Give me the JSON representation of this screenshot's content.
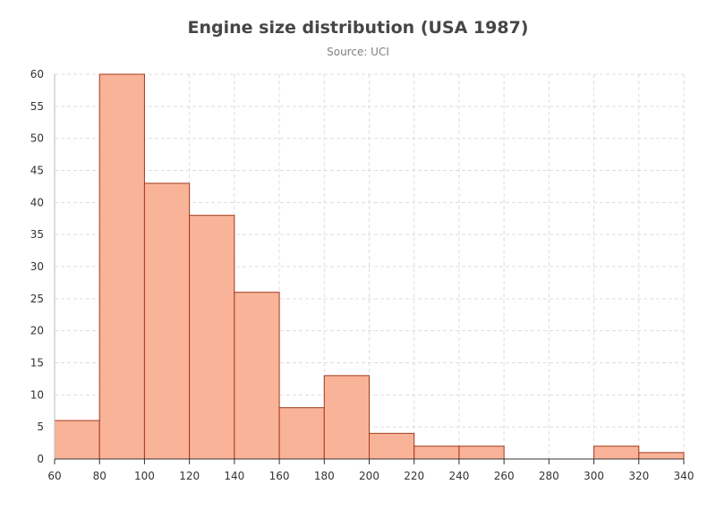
{
  "chart_data": {
    "type": "bar",
    "title": "Engine size distribution (USA 1987)",
    "subtitle": "Source: UCI",
    "xlabel": "",
    "ylabel": "",
    "bins": [
      {
        "from": 60,
        "to": 80,
        "count": 6
      },
      {
        "from": 80,
        "to": 100,
        "count": 60
      },
      {
        "from": 100,
        "to": 120,
        "count": 43
      },
      {
        "from": 120,
        "to": 140,
        "count": 38
      },
      {
        "from": 140,
        "to": 160,
        "count": 26
      },
      {
        "from": 160,
        "to": 180,
        "count": 8
      },
      {
        "from": 180,
        "to": 200,
        "count": 13
      },
      {
        "from": 200,
        "to": 220,
        "count": 4
      },
      {
        "from": 220,
        "to": 240,
        "count": 2
      },
      {
        "from": 240,
        "to": 260,
        "count": 2
      },
      {
        "from": 260,
        "to": 280,
        "count": 0
      },
      {
        "from": 280,
        "to": 300,
        "count": 0
      },
      {
        "from": 300,
        "to": 320,
        "count": 2
      },
      {
        "from": 320,
        "to": 340,
        "count": 1
      }
    ],
    "xlim": [
      60,
      340
    ],
    "ylim": [
      0,
      60
    ],
    "xticks": [
      "60",
      "80",
      "100",
      "120",
      "140",
      "160",
      "180",
      "200",
      "220",
      "240",
      "260",
      "280",
      "300",
      "320",
      "340"
    ],
    "yticks": [
      "0",
      "5",
      "10",
      "15",
      "20",
      "25",
      "30",
      "35",
      "40",
      "45",
      "50",
      "55",
      "60"
    ],
    "grid": true,
    "colors": {
      "fill": "#f9b399",
      "stroke": "#a4391c",
      "grid": "#dddddd",
      "axis": "#333333"
    }
  }
}
